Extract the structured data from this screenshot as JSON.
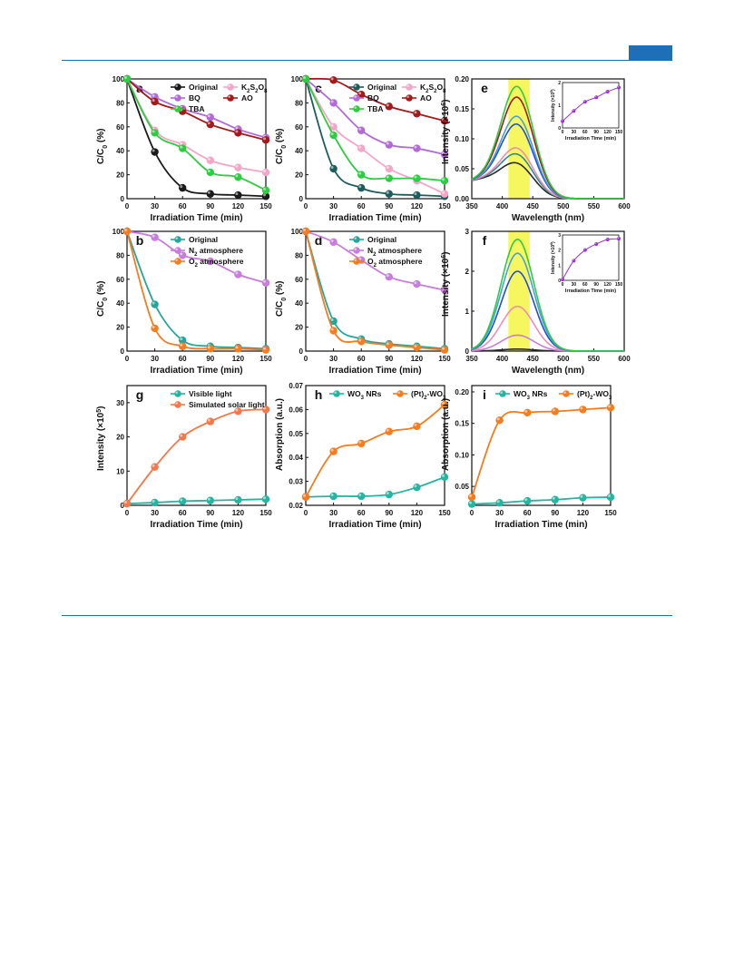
{
  "header": {
    "accent": "#1f6fb8"
  },
  "chart_data": [
    {
      "id": "a",
      "type": "line",
      "panel_label": "a",
      "xlabel": "Irradiation Time (min)",
      "ylabel": "C/C0 (%)",
      "xlim": [
        0,
        150
      ],
      "ylim": [
        0,
        100
      ],
      "xticks": [
        "0",
        "30",
        "60",
        "90",
        "120",
        "150"
      ],
      "yticks": [
        "0",
        "20",
        "40",
        "60",
        "80",
        "100"
      ],
      "legend": {
        "placement": "top-right",
        "columns": 2
      },
      "series": [
        {
          "name": "Original",
          "color": "#1a1a1a",
          "x": [
            0,
            30,
            60,
            90,
            120,
            150
          ],
          "y": [
            100,
            39,
            9,
            4,
            3,
            2
          ]
        },
        {
          "name": "K2S2O8",
          "color": "#f4a6c6",
          "x": [
            0,
            30,
            60,
            90,
            120,
            150
          ],
          "y": [
            100,
            57,
            45,
            32,
            26,
            22
          ]
        },
        {
          "name": "BQ",
          "color": "#b36ad9",
          "x": [
            0,
            30,
            60,
            90,
            120,
            150
          ],
          "y": [
            100,
            85,
            75,
            68,
            58,
            51
          ]
        },
        {
          "name": "AO",
          "color": "#a31a1a",
          "x": [
            0,
            30,
            60,
            90,
            120,
            150
          ],
          "y": [
            100,
            81,
            73,
            62,
            55,
            49
          ]
        },
        {
          "name": "TBA",
          "color": "#2ecc40",
          "x": [
            0,
            30,
            60,
            90,
            120,
            150
          ],
          "y": [
            100,
            55,
            42,
            22,
            18,
            7
          ]
        }
      ]
    },
    {
      "id": "c",
      "type": "line",
      "panel_label": "c",
      "xlabel": "Irradiation Time (min)",
      "ylabel": "C/C0 (%)",
      "xlim": [
        0,
        150
      ],
      "ylim": [
        0,
        100
      ],
      "xticks": [
        "0",
        "30",
        "60",
        "90",
        "120",
        "150"
      ],
      "yticks": [
        "0",
        "20",
        "40",
        "60",
        "80",
        "100"
      ],
      "legend": {
        "placement": "top-right",
        "columns": 2
      },
      "series": [
        {
          "name": "Original",
          "color": "#1f5c5c",
          "x": [
            0,
            30,
            60,
            90,
            120,
            150
          ],
          "y": [
            100,
            25,
            9,
            4,
            3,
            2
          ]
        },
        {
          "name": "K2S2O8",
          "color": "#f4a6c6",
          "x": [
            0,
            30,
            60,
            90,
            120,
            150
          ],
          "y": [
            100,
            60,
            42,
            25,
            15,
            4
          ]
        },
        {
          "name": "BQ",
          "color": "#b36ad9",
          "x": [
            0,
            30,
            60,
            90,
            120,
            150
          ],
          "y": [
            100,
            80,
            57,
            45,
            42,
            37
          ]
        },
        {
          "name": "AO",
          "color": "#a31a1a",
          "x": [
            0,
            30,
            60,
            90,
            120,
            150
          ],
          "y": [
            100,
            99,
            87,
            77,
            71,
            65
          ]
        },
        {
          "name": "TBA",
          "color": "#2ecc40",
          "x": [
            0,
            30,
            60,
            90,
            120,
            150
          ],
          "y": [
            100,
            53,
            20,
            17,
            17,
            15
          ]
        }
      ]
    },
    {
      "id": "e",
      "type": "line",
      "panel_label": "e",
      "xlabel": "Wavelength (nm)",
      "ylabel": "Intensity (×10^6)",
      "xlim": [
        350,
        600
      ],
      "ylim": [
        0,
        0.2
      ],
      "xticks": [
        "350",
        "400",
        "450",
        "500",
        "550",
        "600"
      ],
      "yticks": [
        "0.00",
        "0.05",
        "0.10",
        "0.15",
        "0.20"
      ],
      "highlight_band": [
        410,
        445
      ],
      "highlight_color": "#f5f542",
      "series": [
        {
          "color": "#2a2a2a",
          "peak": 0.05
        },
        {
          "color": "#2e8b8b",
          "peak": 0.065
        },
        {
          "color": "#f08cb4",
          "peak": 0.075
        },
        {
          "color": "#1f4fd8",
          "peak": 0.115
        },
        {
          "color": "#4aa0d8",
          "peak": 0.128
        },
        {
          "color": "#a31a1a",
          "peak": 0.16
        },
        {
          "color": "#2ecc40",
          "peak": 0.178
        }
      ],
      "inset": {
        "xlabel": "Irradiation Time (min)",
        "ylabel": "Intensity (×10^5)",
        "xlim": [
          0,
          150
        ],
        "ylim": [
          0,
          2
        ],
        "xticks": [
          "0",
          "30",
          "60",
          "90",
          "120",
          "150"
        ],
        "yticks": [
          "0",
          "1",
          "2"
        ],
        "color": "#9b30d9",
        "x": [
          0,
          30,
          60,
          90,
          120,
          150
        ],
        "y": [
          0.3,
          0.75,
          1.15,
          1.35,
          1.6,
          1.78
        ]
      }
    },
    {
      "id": "b",
      "type": "line",
      "panel_label": "b",
      "xlabel": "Irradiation Time (min)",
      "ylabel": "C/C0 (%)",
      "xlim": [
        0,
        150
      ],
      "ylim": [
        0,
        100
      ],
      "xticks": [
        "0",
        "30",
        "60",
        "90",
        "120",
        "150"
      ],
      "yticks": [
        "0",
        "20",
        "40",
        "60",
        "80",
        "100"
      ],
      "legend": {
        "placement": "top-right",
        "columns": 1
      },
      "series": [
        {
          "name": "Original",
          "color": "#26a69a",
          "x": [
            0,
            30,
            60,
            90,
            120,
            150
          ],
          "y": [
            100,
            39,
            9,
            4,
            3,
            2
          ]
        },
        {
          "name": "N2 atmosphere",
          "color": "#c77ddb",
          "x": [
            0,
            30,
            60,
            90,
            120,
            150
          ],
          "y": [
            100,
            95,
            80,
            75,
            64,
            57
          ]
        },
        {
          "name": "O2 atmosphere",
          "color": "#f57c1f",
          "x": [
            0,
            30,
            60,
            90,
            120,
            150
          ],
          "y": [
            100,
            19,
            4,
            2,
            2,
            1
          ]
        }
      ]
    },
    {
      "id": "d",
      "type": "line",
      "panel_label": "d",
      "xlabel": "Irradiation Time (min)",
      "ylabel": "C/C0 (%)",
      "xlim": [
        0,
        150
      ],
      "ylim": [
        0,
        100
      ],
      "xticks": [
        "0",
        "30",
        "60",
        "90",
        "120",
        "150"
      ],
      "yticks": [
        "0",
        "20",
        "40",
        "60",
        "80",
        "100"
      ],
      "legend": {
        "placement": "top-right",
        "columns": 1
      },
      "series": [
        {
          "name": "Original",
          "color": "#26a69a",
          "x": [
            0,
            30,
            60,
            90,
            120,
            150
          ],
          "y": [
            100,
            25,
            10,
            6,
            4,
            2
          ]
        },
        {
          "name": "N2 atmosphere",
          "color": "#c77ddb",
          "x": [
            0,
            30,
            60,
            90,
            120,
            150
          ],
          "y": [
            100,
            91,
            76,
            62,
            56,
            51
          ]
        },
        {
          "name": "O2 atmosphere",
          "color": "#f57c1f",
          "x": [
            0,
            30,
            60,
            90,
            120,
            150
          ],
          "y": [
            100,
            17,
            8,
            5,
            3,
            1
          ]
        }
      ]
    },
    {
      "id": "f",
      "type": "line",
      "panel_label": "f",
      "xlabel": "Wavelength (nm)",
      "ylabel": "Intensity (×10^6)",
      "xlim": [
        350,
        600
      ],
      "ylim": [
        0,
        3
      ],
      "xticks": [
        "350",
        "400",
        "450",
        "500",
        "550",
        "600"
      ],
      "yticks": [
        "0",
        "1",
        "2",
        "3"
      ],
      "highlight_band": [
        410,
        445
      ],
      "highlight_color": "#f5f542",
      "series": [
        {
          "color": "#2a2a2a",
          "peak": 0.05
        },
        {
          "color": "#c77ddb",
          "peak": 0.4
        },
        {
          "color": "#f08cb4",
          "peak": 1.12
        },
        {
          "color": "#1f4fd8",
          "peak": 2.0
        },
        {
          "color": "#4aa0d8",
          "peak": 2.45
        },
        {
          "color": "#2ecc40",
          "peak": 2.8
        }
      ],
      "inset": {
        "xlabel": "Irradiation Time (min)",
        "ylabel": "Intensity (×10^6)",
        "xlim": [
          0,
          150
        ],
        "ylim": [
          0,
          3
        ],
        "xticks": [
          "0",
          "30",
          "60",
          "90",
          "120",
          "150"
        ],
        "yticks": [
          "0",
          "1",
          "2",
          "3"
        ],
        "color": "#9b30d9",
        "x": [
          0,
          30,
          60,
          90,
          120,
          150
        ],
        "y": [
          0.05,
          1.3,
          2.0,
          2.4,
          2.7,
          2.75
        ]
      }
    },
    {
      "id": "g",
      "type": "line",
      "panel_label": "g",
      "xlabel": "Irradiation Time (min)",
      "ylabel": "Intensity (×10^5)",
      "xlim": [
        0,
        150
      ],
      "ylim": [
        0,
        35
      ],
      "xticks": [
        "0",
        "30",
        "60",
        "90",
        "120",
        "150"
      ],
      "yticks": [
        "0",
        "10",
        "20",
        "30"
      ],
      "legend": {
        "placement": "top-right",
        "columns": 1
      },
      "series": [
        {
          "name": "Visible light",
          "color": "#26b5a0",
          "x": [
            0,
            30,
            60,
            90,
            120,
            150
          ],
          "y": [
            0.5,
            0.8,
            1.2,
            1.4,
            1.6,
            1.8
          ]
        },
        {
          "name": "Simulated solar light",
          "color": "#f4784a",
          "x": [
            0,
            30,
            60,
            90,
            120,
            150
          ],
          "y": [
            0.5,
            11.2,
            20,
            24.5,
            27.5,
            28
          ]
        }
      ]
    },
    {
      "id": "h",
      "type": "line",
      "panel_label": "h",
      "xlabel": "Irradiation Time (min)",
      "ylabel": "Absorption (a.u.)",
      "xlim": [
        0,
        150
      ],
      "ylim": [
        0.02,
        0.07
      ],
      "xticks": [
        "0",
        "30",
        "60",
        "90",
        "120",
        "150"
      ],
      "yticks": [
        "0.02",
        "0.03",
        "0.04",
        "0.05",
        "0.06",
        "0.07"
      ],
      "legend": {
        "placement": "top",
        "columns": 2
      },
      "series": [
        {
          "name": "WO3 NRs",
          "color": "#26b5a0",
          "x": [
            0,
            30,
            60,
            90,
            120,
            150
          ],
          "y": [
            0.0235,
            0.0238,
            0.0238,
            0.0245,
            0.0275,
            0.0318
          ]
        },
        {
          "name": "(Pt)2-WO3",
          "color": "#f57c1f",
          "x": [
            0,
            30,
            60,
            90,
            120,
            150
          ],
          "y": [
            0.0235,
            0.0425,
            0.0458,
            0.0508,
            0.053,
            0.062
          ]
        }
      ]
    },
    {
      "id": "i",
      "type": "line",
      "panel_label": "i",
      "xlabel": "Irradiation Time (min)",
      "ylabel": "Absorption (a.u.)",
      "xlim": [
        0,
        150
      ],
      "ylim": [
        0.02,
        0.21
      ],
      "xticks": [
        "0",
        "30",
        "60",
        "90",
        "120",
        "150"
      ],
      "yticks": [
        "0.05",
        "0.10",
        "0.15",
        "0.20"
      ],
      "legend": {
        "placement": "top",
        "columns": 2
      },
      "series": [
        {
          "name": "WO3 NRs",
          "color": "#26b5a0",
          "x": [
            0,
            30,
            60,
            90,
            120,
            150
          ],
          "y": [
            0.022,
            0.024,
            0.027,
            0.029,
            0.032,
            0.033
          ]
        },
        {
          "name": "(Pt)2-WO3",
          "color": "#f57c1f",
          "x": [
            0,
            30,
            60,
            90,
            120,
            150
          ],
          "y": [
            0.033,
            0.155,
            0.167,
            0.169,
            0.172,
            0.175
          ]
        }
      ]
    }
  ]
}
